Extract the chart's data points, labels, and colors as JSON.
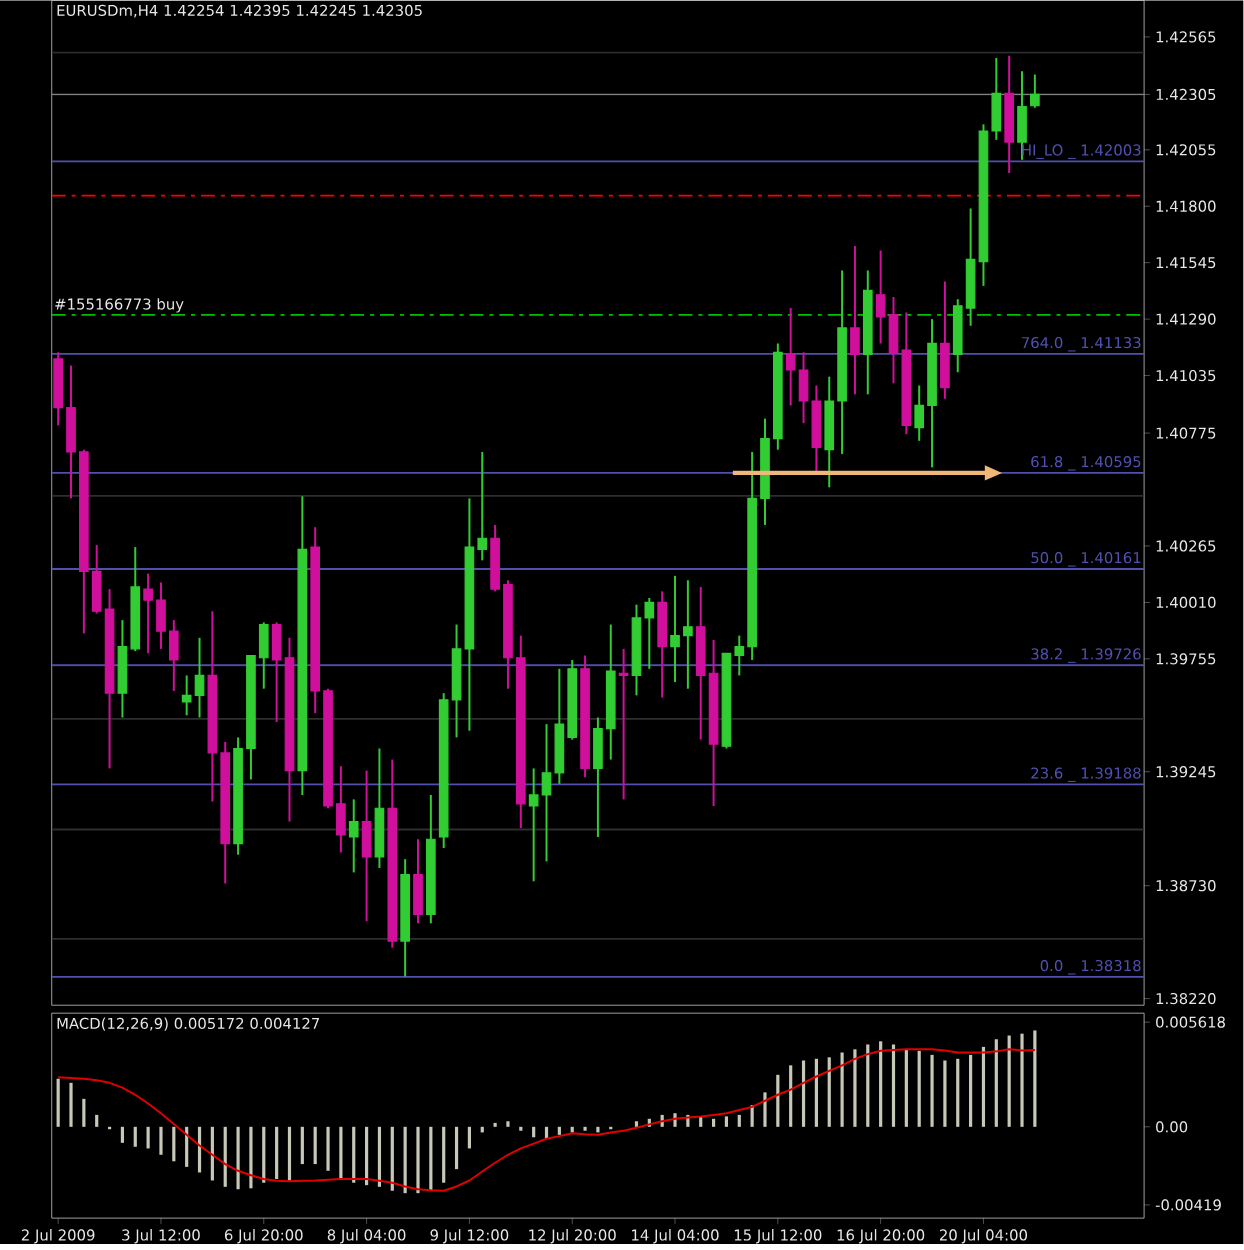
{
  "chart_data": [
    {
      "type": "candlestick",
      "title": "EURUSDm,H4  1.42254 1.42395 1.42245 1.42305",
      "categories": [
        null,
        null,
        null,
        null,
        null,
        null,
        null,
        null,
        null,
        null,
        null,
        null,
        null,
        null,
        null,
        null,
        null,
        null,
        null,
        null,
        null,
        null,
        null,
        null,
        null,
        null,
        null,
        null,
        null,
        null,
        null,
        null,
        null,
        null,
        null,
        null,
        null,
        null,
        null,
        null,
        null,
        null,
        null,
        null,
        null,
        null,
        null,
        null,
        null,
        null,
        null,
        null,
        null,
        null,
        null,
        null,
        null,
        null,
        null,
        null,
        null,
        null,
        null,
        null,
        null,
        null,
        null,
        null,
        null,
        null,
        null,
        null,
        null,
        null,
        null,
        null,
        null,
        null,
        null,
        null,
        null,
        null,
        null,
        null,
        null
      ],
      "tick_labels": "y",
      "ohlc": [
        [
          1.4111,
          1.4114,
          1.4081,
          1.4089
        ],
        [
          1.4089,
          1.4108,
          1.4048,
          1.4069
        ],
        [
          1.4069,
          1.407,
          1.3987,
          1.4015
        ],
        [
          1.4015,
          1.4027,
          1.3996,
          1.3997
        ],
        [
          1.3998,
          1.4007,
          1.3926,
          1.396
        ],
        [
          1.396,
          1.3993,
          1.3949,
          1.3981
        ],
        [
          1.398,
          1.4026,
          1.3979,
          1.4008
        ],
        [
          1.4007,
          1.4014,
          1.3978,
          1.4002
        ],
        [
          1.4002,
          1.401,
          1.398,
          1.3988
        ],
        [
          1.3988,
          1.3993,
          1.3961,
          1.3975
        ],
        [
          1.3956,
          1.3968,
          1.395,
          1.3959
        ],
        [
          1.3959,
          1.3985,
          1.3949,
          1.3968
        ],
        [
          1.3968,
          1.3997,
          1.3911,
          1.3933
        ],
        [
          1.3933,
          1.3938,
          1.3874,
          1.3892
        ],
        [
          1.3892,
          1.394,
          1.3887,
          1.3935
        ],
        [
          1.3935,
          1.3977,
          1.3921,
          1.3977
        ],
        [
          1.3976,
          1.3992,
          1.3962,
          1.3991
        ],
        [
          1.3991,
          1.3992,
          1.3947,
          1.3975
        ],
        [
          1.3976,
          1.3985,
          1.3902,
          1.3925
        ],
        [
          1.3925,
          1.4049,
          1.3914,
          1.4025
        ],
        [
          1.4026,
          1.4035,
          1.3951,
          1.3961
        ],
        [
          1.3961,
          1.3962,
          1.3908,
          1.3909
        ],
        [
          1.391,
          1.3927,
          1.3888,
          1.3896
        ],
        [
          1.3895,
          1.3912,
          1.3879,
          1.3902
        ],
        [
          1.3902,
          1.3925,
          1.3857,
          1.3886
        ],
        [
          1.3886,
          1.3935,
          1.3881,
          1.3908
        ],
        [
          1.3908,
          1.393,
          1.3845,
          1.3848
        ],
        [
          1.3848,
          1.3885,
          1.3832,
          1.3878
        ],
        [
          1.3878,
          1.3894,
          1.3856,
          1.386
        ],
        [
          1.386,
          1.3914,
          1.3856,
          1.3894
        ],
        [
          1.3895,
          1.396,
          1.389,
          1.3957
        ],
        [
          1.3957,
          1.3991,
          1.394,
          1.398
        ],
        [
          1.398,
          1.4048,
          1.3943,
          1.4026
        ],
        [
          1.4025,
          1.4069,
          1.402,
          1.403
        ],
        [
          1.403,
          1.4036,
          1.4006,
          1.4007
        ],
        [
          1.4009,
          1.4011,
          1.3962,
          1.3976
        ],
        [
          1.3976,
          1.3986,
          1.3899,
          1.391
        ],
        [
          1.3909,
          1.3926,
          1.3875,
          1.3914
        ],
        [
          1.3914,
          1.3946,
          1.3884,
          1.3924
        ],
        [
          1.3924,
          1.3971,
          1.3919,
          1.3946
        ],
        [
          1.394,
          1.3975,
          1.3939,
          1.3971
        ],
        [
          1.3971,
          1.3977,
          1.3922,
          1.3926
        ],
        [
          1.3926,
          1.3949,
          1.3895,
          1.3944
        ],
        [
          1.3944,
          1.3991,
          1.393,
          1.397
        ],
        [
          1.3969,
          1.398,
          1.3912,
          1.3968
        ],
        [
          1.3968,
          1.4,
          1.3959,
          1.3994
        ],
        [
          1.3994,
          1.4003,
          1.3971,
          1.4001
        ],
        [
          1.4001,
          1.4006,
          1.3958,
          1.3981
        ],
        [
          1.3981,
          1.4013,
          1.3965,
          1.3986
        ],
        [
          1.3986,
          1.4011,
          1.3962,
          1.399
        ],
        [
          1.399,
          1.4008,
          1.3939,
          1.3968
        ],
        [
          1.3969,
          1.3984,
          1.3909,
          1.3937
        ],
        [
          1.3936,
          1.3978,
          1.3935,
          1.3978
        ],
        [
          1.3977,
          1.3986,
          1.3968,
          1.3981
        ],
        [
          1.3981,
          1.4069,
          1.3975,
          1.4048
        ],
        [
          1.4048,
          1.4084,
          1.4036,
          1.4075
        ],
        [
          1.4075,
          1.4118,
          1.407,
          1.4114
        ],
        [
          1.4113,
          1.4134,
          1.409,
          1.4106
        ],
        [
          1.4106,
          1.4114,
          1.4082,
          1.4092
        ],
        [
          1.4092,
          1.4099,
          1.4059,
          1.4071
        ],
        [
          1.407,
          1.4103,
          1.4053,
          1.4092
        ],
        [
          1.4092,
          1.4151,
          1.4068,
          1.4125
        ],
        [
          1.4125,
          1.4162,
          1.4095,
          1.4113
        ],
        [
          1.4113,
          1.4151,
          1.4095,
          1.4142
        ],
        [
          1.414,
          1.416,
          1.4118,
          1.413
        ],
        [
          1.4131,
          1.4139,
          1.41,
          1.4114
        ],
        [
          1.4115,
          1.4132,
          1.4077,
          1.4081
        ],
        [
          1.408,
          1.4099,
          1.4074,
          1.409
        ],
        [
          1.409,
          1.4129,
          1.4062,
          1.4118
        ],
        [
          1.4118,
          1.4146,
          1.4093,
          1.4098
        ],
        [
          1.4113,
          1.4138,
          1.4105,
          1.4135
        ],
        [
          1.4134,
          1.4179,
          1.4126,
          1.4156
        ],
        [
          1.4155,
          1.4217,
          1.4144,
          1.4214
        ],
        [
          1.4214,
          1.4247,
          1.421,
          1.4231
        ],
        [
          1.4231,
          1.4248,
          1.4195,
          1.4209
        ],
        [
          1.4209,
          1.4241,
          1.4201,
          1.4225
        ],
        [
          1.42254,
          1.42395,
          1.42245,
          1.42305
        ],
        null,
        null,
        null,
        null,
        null,
        null,
        null,
        null
      ],
      "colors": [
        "#d0109c",
        "#d0109c",
        "#d0109c",
        "#d0109c",
        "#d0109c",
        "#32cd32",
        "#32cd32",
        "#d0109c",
        "#d0109c",
        "#d0109c",
        "#32cd32",
        "#32cd32",
        "#d0109c",
        "#d0109c",
        "#32cd32",
        "#32cd32",
        "#32cd32",
        "#d0109c",
        "#d0109c",
        "#32cd32",
        "#d0109c",
        "#d0109c",
        "#d0109c",
        "#32cd32",
        "#d0109c",
        "#32cd32",
        "#d0109c",
        "#32cd32",
        "#d0109c",
        "#32cd32",
        "#32cd32",
        "#32cd32",
        "#32cd32",
        "#32cd32",
        "#d0109c",
        "#d0109c",
        "#d0109c",
        "#32cd32",
        "#32cd32",
        "#32cd32",
        "#32cd32",
        "#d0109c",
        "#32cd32",
        "#32cd32",
        "#d0109c",
        "#32cd32",
        "#32cd32",
        "#d0109c",
        "#32cd32",
        "#32cd32",
        "#d0109c",
        "#d0109c",
        "#32cd32",
        "#32cd32",
        "#32cd32",
        "#32cd32",
        "#32cd32",
        "#d0109c",
        "#d0109c",
        "#d0109c",
        "#32cd32",
        "#32cd32",
        "#d0109c",
        "#32cd32",
        "#d0109c",
        "#d0109c",
        "#d0109c",
        "#32cd32",
        "#32cd32",
        "#d0109c",
        "#32cd32",
        "#32cd32",
        "#32cd32",
        "#32cd32",
        "#d0109c",
        "#32cd32",
        "#32cd32",
        null,
        null,
        null,
        null,
        null,
        null,
        null,
        null
      ],
      "ylim": [
        1.3819,
        1.4273
      ],
      "yticks": [
        {
          "value": 1.42565,
          "label": "1.42565"
        },
        {
          "value": 1.42305,
          "label": "1.42305"
        },
        {
          "value": 1.42055,
          "label": "1.42055"
        },
        {
          "value": 1.418,
          "label": "1.41800"
        },
        {
          "value": 1.41545,
          "label": "1.41545"
        },
        {
          "value": 1.4129,
          "label": "1.41290"
        },
        {
          "value": 1.41035,
          "label": "1.41035"
        },
        {
          "value": 1.40775,
          "label": "1.40775"
        },
        {
          "value": 1.40265,
          "label": "1.40265"
        },
        {
          "value": 1.4001,
          "label": "1.40010"
        },
        {
          "value": 1.39755,
          "label": "1.39755"
        },
        {
          "value": 1.39245,
          "label": "1.39245"
        },
        {
          "value": 1.3873,
          "label": "1.38730"
        },
        {
          "value": 1.3822,
          "label": "1.38220"
        }
      ],
      "ref_lines": [
        {
          "axis": "y",
          "value": 1.42494,
          "color": "#2e2e2e"
        },
        {
          "axis": "y",
          "value": 1.42305,
          "color": "#808080"
        },
        {
          "axis": "y",
          "value": 1.42003,
          "label": "HI_LO _ 1.42003",
          "color": "#5050b0"
        },
        {
          "axis": "y",
          "value": 1.41848,
          "color": "#ff0000",
          "line_style": "dashed"
        },
        {
          "axis": "y",
          "value": 1.41309,
          "label": "#155166773 buy",
          "color": "#00c000",
          "line_style": "dashed"
        },
        {
          "axis": "y",
          "value": 1.41133,
          "label": "764.0 _ 1.41133",
          "color": "#5050b0"
        },
        {
          "axis": "y",
          "value": 1.40595,
          "label": "61.8 _ 1.40595",
          "color": "#5050b0"
        },
        {
          "axis": "y",
          "value": 1.40491,
          "color": "#2e2e2e"
        },
        {
          "axis": "y",
          "value": 1.40161,
          "label": "50.0 _ 1.40161",
          "color": "#5050b0"
        },
        {
          "axis": "y",
          "value": 1.39726,
          "label": "38.2 _ 1.39726",
          "color": "#5050b0"
        },
        {
          "axis": "y",
          "value": 1.39484,
          "color": "#2e2e2e"
        },
        {
          "axis": "y",
          "value": 1.39188,
          "label": "23.6 _ 1.39188",
          "color": "#5050b0"
        },
        {
          "axis": "y",
          "value": 1.38984,
          "color": "#2e2e2e"
        },
        {
          "axis": "y",
          "value": 1.3849,
          "color": "#2e2e2e"
        },
        {
          "axis": "y",
          "value": 1.38318,
          "label": "0.0 _ 1.38318",
          "color": "#5050b0"
        }
      ]
    },
    {
      "type": "bar",
      "title": "MACD(12,26,9) 0.005172 0.004127",
      "categories": [
        "2 Jul 2009",
        null,
        null,
        null,
        null,
        null,
        null,
        null,
        "3 Jul 12:00",
        null,
        null,
        null,
        null,
        null,
        null,
        null,
        "6 Jul 20:00",
        null,
        null,
        null,
        null,
        null,
        null,
        null,
        "8 Jul 04:00",
        null,
        null,
        null,
        null,
        null,
        null,
        null,
        "9 Jul 12:00",
        null,
        null,
        null,
        null,
        null,
        null,
        null,
        "12 Jul 20:00",
        null,
        null,
        null,
        null,
        null,
        null,
        null,
        "14 Jul 04:00",
        null,
        null,
        null,
        null,
        null,
        null,
        null,
        "15 Jul 12:00",
        null,
        null,
        null,
        null,
        null,
        null,
        null,
        "16 Jul 20:00",
        null,
        null,
        null,
        null,
        null,
        null,
        null,
        "20 Jul 04:00",
        null,
        null,
        null,
        null,
        null,
        null,
        null,
        null,
        null,
        null,
        null,
        null
      ],
      "series": [
        {
          "type": "bar",
          "color": "#c8c8b8",
          "values": [
            0.00258,
            0.00236,
            0.0015,
            0.00064,
            -0.00013,
            -0.00086,
            -0.00107,
            -0.00116,
            -0.0015,
            -0.00185,
            -0.00215,
            -0.00245,
            -0.00288,
            -0.00322,
            -0.00335,
            -0.0033,
            -0.003,
            -0.0028,
            -0.00288,
            -0.002,
            -0.002,
            -0.00236,
            -0.0028,
            -0.003,
            -0.00313,
            -0.00322,
            -0.00343,
            -0.00356,
            -0.00356,
            -0.00343,
            -0.003,
            -0.00227,
            -0.00116,
            -0.0003,
            0.00021,
            0.0003,
            -0.00021,
            -0.00056,
            -0.00064,
            -0.00043,
            -0.0003,
            -0.00021,
            -0.0003,
            -0.00013,
            null,
            0.0003,
            0.00043,
            0.00064,
            0.00073,
            0.00064,
            0.00056,
            0.00043,
            0.00056,
            0.00064,
            0.00116,
            0.00185,
            0.00279,
            0.0033,
            0.00356,
            0.00365,
            0.00373,
            0.00399,
            0.00416,
            0.00442,
            0.00459,
            0.00442,
            0.00416,
            0.00408,
            0.00386,
            0.00356,
            0.00365,
            0.00386,
            0.00429,
            0.0047,
            0.0049,
            0.005,
            0.005172,
            null,
            null,
            null,
            null,
            null,
            null,
            null,
            null
          ]
        },
        {
          "type": "line",
          "color": "#e00000",
          "values": [
            0.00266,
            0.00262,
            0.00258,
            0.0025,
            0.00236,
            0.0021,
            0.00172,
            0.00125,
            0.00073,
            0.00015,
            -0.00043,
            -0.001,
            -0.0015,
            -0.002,
            -0.00236,
            -0.0026,
            -0.0028,
            -0.0029,
            -0.00292,
            -0.0029,
            -0.00288,
            -0.00284,
            -0.0028,
            -0.0028,
            -0.0028,
            -0.0029,
            -0.003,
            -0.0032,
            -0.00335,
            -0.0034,
            -0.00343,
            -0.0032,
            -0.00288,
            -0.0024,
            -0.00193,
            -0.0015,
            -0.00116,
            -0.0009,
            -0.00064,
            -0.0005,
            -0.00034,
            -0.0004,
            -0.00043,
            -0.0003,
            -0.00021,
            -5e-05,
            0.00013,
            0.0003,
            0.00043,
            0.0005,
            0.00056,
            0.00064,
            0.00073,
            0.0009,
            0.00107,
            0.0014,
            0.00172,
            0.002,
            0.00236,
            0.0027,
            0.003,
            0.0033,
            0.00365,
            0.0039,
            0.00408,
            0.00412,
            0.00416,
            0.00416,
            0.00416,
            0.0041,
            0.00399,
            0.00399,
            0.00399,
            0.00405,
            0.00416,
            0.0041,
            0.004127,
            null,
            null,
            null,
            null,
            null,
            null,
            null,
            null
          ]
        }
      ],
      "ylim": [
        -0.0049,
        0.0061
      ],
      "yticks": [
        {
          "value": 0.005618,
          "label": "0.005618"
        },
        {
          "value": 0,
          "label": "0.00"
        },
        {
          "value": -0.00419,
          "label": "-0.00419"
        }
      ]
    }
  ]
}
